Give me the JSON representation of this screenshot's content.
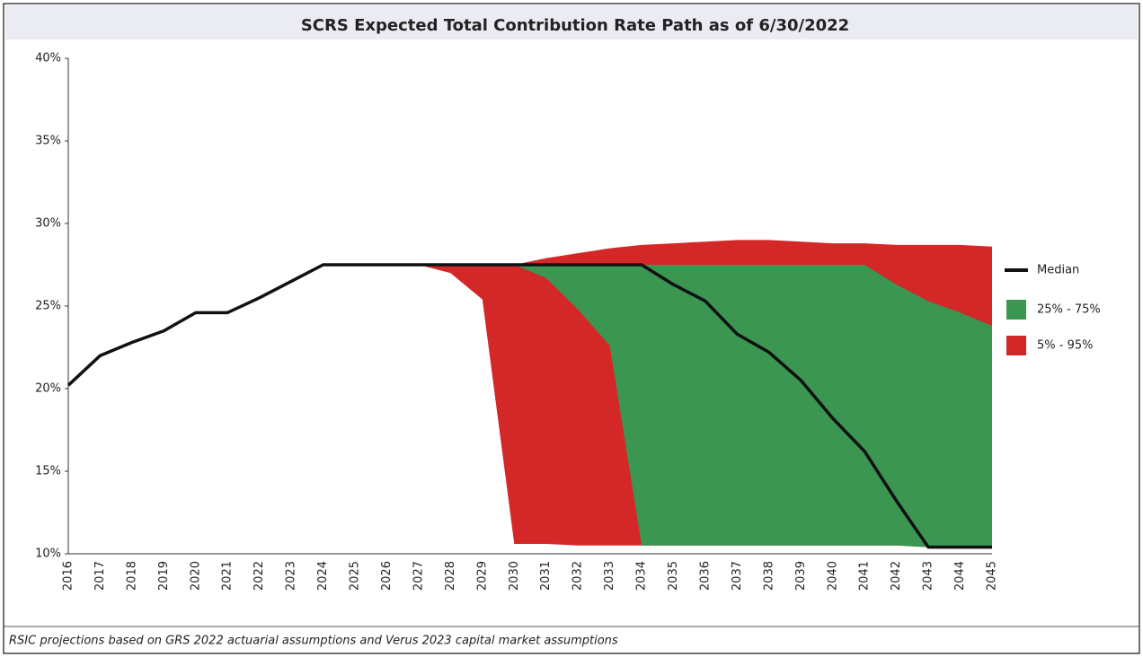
{
  "chart_data": {
    "type": "line",
    "title": "SCRS Expected Total Contribution Rate Path as of 6/30/2022",
    "footnote": "RSIC projections based on GRS 2022 actuarial assumptions and Verus 2023 capital market assumptions",
    "categories": [
      "2016",
      "2017",
      "2018",
      "2019",
      "2020",
      "2021",
      "2022",
      "2023",
      "2024",
      "2025",
      "2026",
      "2027",
      "2028",
      "2029",
      "2030",
      "2031",
      "2032",
      "2033",
      "2034",
      "2035",
      "2036",
      "2037",
      "2038",
      "2039",
      "2040",
      "2041",
      "2042",
      "2043",
      "2044",
      "2045"
    ],
    "ylim": [
      10,
      40
    ],
    "yticks": [
      {
        "value": 10,
        "label": "10%"
      },
      {
        "value": 15,
        "label": "15%"
      },
      {
        "value": 20,
        "label": "20%"
      },
      {
        "value": 25,
        "label": "25%"
      },
      {
        "value": 30,
        "label": "30%"
      },
      {
        "value": 35,
        "label": "35%"
      },
      {
        "value": 40,
        "label": "40%"
      }
    ],
    "grid": false,
    "legend": "right",
    "series": [
      {
        "name": "Median",
        "color": "#111111",
        "values": [
          20.2,
          22.0,
          22.8,
          23.5,
          24.6,
          24.6,
          25.5,
          26.5,
          27.5,
          27.5,
          27.5,
          27.5,
          27.5,
          27.5,
          27.5,
          27.5,
          27.5,
          27.5,
          27.5,
          26.3,
          25.3,
          23.3,
          22.2,
          20.5,
          18.2,
          16.2,
          13.2,
          10.4,
          10.4,
          10.4
        ]
      },
      {
        "name": "25% - 75%",
        "color": "#3a9650",
        "lower": [
          null,
          null,
          null,
          null,
          null,
          null,
          null,
          null,
          null,
          null,
          null,
          null,
          null,
          null,
          27.5,
          26.7,
          24.8,
          22.6,
          10.5,
          10.5,
          10.5,
          10.5,
          10.5,
          10.5,
          10.5,
          10.5,
          10.5,
          10.4,
          10.4,
          10.4
        ],
        "upper": [
          null,
          null,
          null,
          null,
          null,
          null,
          null,
          null,
          null,
          null,
          null,
          null,
          null,
          null,
          27.5,
          27.5,
          27.5,
          27.5,
          27.5,
          27.5,
          27.5,
          27.5,
          27.5,
          27.5,
          27.5,
          27.5,
          26.3,
          25.3,
          24.6,
          23.8
        ]
      },
      {
        "name": "5% - 95%",
        "color": "#d42828",
        "lower": [
          null,
          null,
          null,
          null,
          null,
          null,
          null,
          null,
          null,
          null,
          null,
          27.5,
          27.0,
          25.4,
          10.6,
          10.6,
          10.5,
          10.5,
          10.5,
          10.5,
          10.5,
          10.5,
          10.5,
          10.5,
          10.5,
          10.5,
          10.5,
          10.4,
          10.4,
          10.4
        ],
        "upper": [
          null,
          null,
          null,
          null,
          null,
          null,
          null,
          null,
          null,
          null,
          null,
          27.5,
          27.5,
          27.5,
          27.5,
          27.9,
          28.2,
          28.5,
          28.7,
          28.8,
          28.9,
          29.0,
          29.0,
          28.9,
          28.8,
          28.8,
          28.7,
          28.7,
          28.7,
          28.6
        ]
      }
    ]
  }
}
